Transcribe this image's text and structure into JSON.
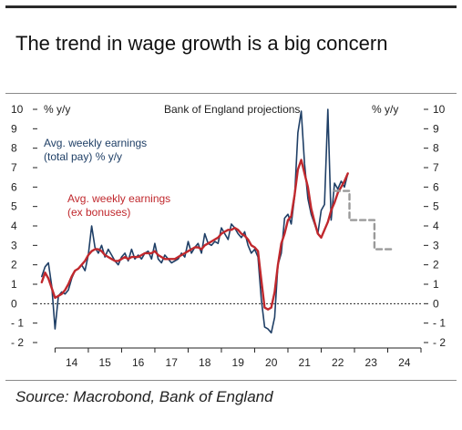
{
  "header": {
    "title": "The trend in wage growth is a big concern"
  },
  "footer": {
    "source": "Source: Macrobond, Bank of England"
  },
  "colors": {
    "total_pay": "#1f3f66",
    "ex_bonuses": "#c0282d",
    "projection": "#9a9a9a",
    "zero_line": "#222222"
  },
  "chart_data": {
    "type": "line",
    "title": "The trend in wage growth is a big concern",
    "ylabel_left": "% y/y",
    "ylabel_right": "% y/y",
    "ylim": [
      -2,
      10
    ],
    "yticks": [
      10,
      9,
      8,
      7,
      6,
      5,
      4,
      3,
      2,
      1,
      0,
      -1,
      -2
    ],
    "ytick_labels": [
      "10",
      "9",
      "8",
      "7",
      "6",
      "5",
      "4",
      "3",
      "2",
      "1",
      "0",
      "- 1",
      "- 2"
    ],
    "xlim": [
      2013.55,
      2025.0
    ],
    "x_tick_labels": [
      "14",
      "15",
      "16",
      "17",
      "18",
      "19",
      "20",
      "21",
      "22",
      "23",
      "24"
    ],
    "x_tick_positions": [
      2014.5,
      2015.5,
      2016.5,
      2017.5,
      2018.5,
      2019.5,
      2020.5,
      2021.5,
      2022.5,
      2023.5,
      2024.5
    ],
    "x_boundaries": [
      2014,
      2015,
      2016,
      2017,
      2018,
      2019,
      2020,
      2021,
      2022,
      2023,
      2024,
      2025
    ],
    "zero_line": true,
    "annotations": {
      "projection_label": "Bank of England projections",
      "total_pay_label_1": "Avg. weekly earnings",
      "total_pay_label_2": "(total pay) % y/y",
      "ex_bonus_label_1": "Avg. weekly earnings",
      "ex_bonus_label_2": "(ex bonuses)"
    },
    "series": [
      {
        "name": "Avg. weekly earnings (total pay) % y/y",
        "style": "solid",
        "points": [
          [
            2013.6,
            1.4
          ],
          [
            2013.7,
            1.9
          ],
          [
            2013.8,
            2.1
          ],
          [
            2013.9,
            0.9
          ],
          [
            2014.0,
            -1.3
          ],
          [
            2014.1,
            0.4
          ],
          [
            2014.2,
            0.6
          ],
          [
            2014.3,
            0.5
          ],
          [
            2014.4,
            0.7
          ],
          [
            2014.5,
            1.3
          ],
          [
            2014.6,
            1.7
          ],
          [
            2014.7,
            1.8
          ],
          [
            2014.8,
            2.0
          ],
          [
            2014.9,
            1.7
          ],
          [
            2015.0,
            2.5
          ],
          [
            2015.1,
            4.0
          ],
          [
            2015.2,
            2.9
          ],
          [
            2015.3,
            2.6
          ],
          [
            2015.4,
            3.0
          ],
          [
            2015.5,
            2.4
          ],
          [
            2015.6,
            2.8
          ],
          [
            2015.7,
            2.5
          ],
          [
            2015.8,
            2.2
          ],
          [
            2015.9,
            2.0
          ],
          [
            2016.0,
            2.4
          ],
          [
            2016.1,
            2.6
          ],
          [
            2016.2,
            2.2
          ],
          [
            2016.3,
            2.8
          ],
          [
            2016.4,
            2.3
          ],
          [
            2016.5,
            2.5
          ],
          [
            2016.6,
            2.3
          ],
          [
            2016.7,
            2.6
          ],
          [
            2016.8,
            2.7
          ],
          [
            2016.9,
            2.3
          ],
          [
            2017.0,
            3.1
          ],
          [
            2017.1,
            2.3
          ],
          [
            2017.2,
            2.1
          ],
          [
            2017.3,
            2.5
          ],
          [
            2017.4,
            2.3
          ],
          [
            2017.5,
            2.1
          ],
          [
            2017.6,
            2.2
          ],
          [
            2017.7,
            2.3
          ],
          [
            2017.8,
            2.6
          ],
          [
            2017.9,
            2.4
          ],
          [
            2018.0,
            3.2
          ],
          [
            2018.1,
            2.6
          ],
          [
            2018.2,
            2.9
          ],
          [
            2018.3,
            3.1
          ],
          [
            2018.4,
            2.6
          ],
          [
            2018.5,
            3.6
          ],
          [
            2018.6,
            3.1
          ],
          [
            2018.7,
            3.0
          ],
          [
            2018.8,
            3.2
          ],
          [
            2018.9,
            3.1
          ],
          [
            2019.0,
            3.9
          ],
          [
            2019.1,
            3.6
          ],
          [
            2019.2,
            3.3
          ],
          [
            2019.3,
            4.1
          ],
          [
            2019.4,
            3.9
          ],
          [
            2019.5,
            3.6
          ],
          [
            2019.6,
            3.4
          ],
          [
            2019.7,
            3.7
          ],
          [
            2019.8,
            3.0
          ],
          [
            2019.9,
            2.6
          ],
          [
            2020.0,
            2.8
          ],
          [
            2020.1,
            2.4
          ],
          [
            2020.2,
            0.2
          ],
          [
            2020.3,
            -1.2
          ],
          [
            2020.4,
            -1.3
          ],
          [
            2020.5,
            -1.5
          ],
          [
            2020.6,
            -0.7
          ],
          [
            2020.7,
            2.0
          ],
          [
            2020.8,
            2.6
          ],
          [
            2020.9,
            4.4
          ],
          [
            2021.0,
            4.6
          ],
          [
            2021.1,
            4.1
          ],
          [
            2021.2,
            5.5
          ],
          [
            2021.3,
            8.8
          ],
          [
            2021.4,
            9.9
          ],
          [
            2021.5,
            7.2
          ],
          [
            2021.6,
            5.4
          ],
          [
            2021.7,
            4.6
          ],
          [
            2021.8,
            4.1
          ],
          [
            2021.9,
            3.6
          ],
          [
            2022.0,
            4.8
          ],
          [
            2022.1,
            5.1
          ],
          [
            2022.2,
            10.0
          ],
          [
            2022.3,
            4.3
          ],
          [
            2022.4,
            6.2
          ],
          [
            2022.5,
            5.9
          ],
          [
            2022.6,
            6.3
          ],
          [
            2022.7,
            6.0
          ],
          [
            2022.8,
            6.7
          ]
        ]
      },
      {
        "name": "Avg. weekly earnings (ex bonuses)",
        "style": "solid",
        "points": [
          [
            2013.6,
            1.1
          ],
          [
            2013.7,
            1.6
          ],
          [
            2013.8,
            1.3
          ],
          [
            2013.9,
            0.8
          ],
          [
            2014.0,
            0.3
          ],
          [
            2014.1,
            0.4
          ],
          [
            2014.2,
            0.5
          ],
          [
            2014.3,
            0.7
          ],
          [
            2014.4,
            1.0
          ],
          [
            2014.5,
            1.4
          ],
          [
            2014.6,
            1.7
          ],
          [
            2014.7,
            1.8
          ],
          [
            2014.8,
            2.0
          ],
          [
            2014.9,
            2.2
          ],
          [
            2015.0,
            2.5
          ],
          [
            2015.1,
            2.7
          ],
          [
            2015.2,
            2.8
          ],
          [
            2015.3,
            2.8
          ],
          [
            2015.4,
            2.7
          ],
          [
            2015.5,
            2.5
          ],
          [
            2015.6,
            2.4
          ],
          [
            2015.7,
            2.3
          ],
          [
            2015.8,
            2.2
          ],
          [
            2015.9,
            2.2
          ],
          [
            2016.0,
            2.3
          ],
          [
            2016.1,
            2.4
          ],
          [
            2016.2,
            2.3
          ],
          [
            2016.3,
            2.4
          ],
          [
            2016.4,
            2.4
          ],
          [
            2016.5,
            2.4
          ],
          [
            2016.6,
            2.5
          ],
          [
            2016.7,
            2.6
          ],
          [
            2016.8,
            2.6
          ],
          [
            2016.9,
            2.6
          ],
          [
            2017.0,
            2.7
          ],
          [
            2017.1,
            2.5
          ],
          [
            2017.2,
            2.4
          ],
          [
            2017.3,
            2.3
          ],
          [
            2017.4,
            2.3
          ],
          [
            2017.5,
            2.3
          ],
          [
            2017.6,
            2.3
          ],
          [
            2017.7,
            2.4
          ],
          [
            2017.8,
            2.5
          ],
          [
            2017.9,
            2.6
          ],
          [
            2018.0,
            2.7
          ],
          [
            2018.1,
            2.8
          ],
          [
            2018.2,
            2.9
          ],
          [
            2018.3,
            2.9
          ],
          [
            2018.4,
            2.8
          ],
          [
            2018.5,
            3.0
          ],
          [
            2018.6,
            3.1
          ],
          [
            2018.7,
            3.2
          ],
          [
            2018.8,
            3.3
          ],
          [
            2018.9,
            3.4
          ],
          [
            2019.0,
            3.6
          ],
          [
            2019.1,
            3.7
          ],
          [
            2019.2,
            3.8
          ],
          [
            2019.3,
            3.8
          ],
          [
            2019.4,
            3.9
          ],
          [
            2019.5,
            3.8
          ],
          [
            2019.6,
            3.6
          ],
          [
            2019.7,
            3.5
          ],
          [
            2019.8,
            3.3
          ],
          [
            2019.9,
            3.0
          ],
          [
            2020.0,
            2.9
          ],
          [
            2020.1,
            2.7
          ],
          [
            2020.2,
            1.2
          ],
          [
            2020.3,
            -0.2
          ],
          [
            2020.4,
            -0.3
          ],
          [
            2020.5,
            -0.2
          ],
          [
            2020.6,
            0.6
          ],
          [
            2020.7,
            2.0
          ],
          [
            2020.8,
            3.1
          ],
          [
            2020.9,
            3.6
          ],
          [
            2021.0,
            4.3
          ],
          [
            2021.1,
            4.5
          ],
          [
            2021.2,
            5.6
          ],
          [
            2021.3,
            6.9
          ],
          [
            2021.4,
            7.4
          ],
          [
            2021.5,
            6.7
          ],
          [
            2021.6,
            6.0
          ],
          [
            2021.7,
            4.9
          ],
          [
            2021.8,
            4.2
          ],
          [
            2021.9,
            3.6
          ],
          [
            2022.0,
            3.4
          ],
          [
            2022.1,
            3.8
          ],
          [
            2022.2,
            4.2
          ],
          [
            2022.3,
            4.8
          ],
          [
            2022.4,
            5.2
          ],
          [
            2022.5,
            5.7
          ],
          [
            2022.6,
            6.0
          ],
          [
            2022.7,
            6.3
          ],
          [
            2022.8,
            6.7
          ]
        ]
      },
      {
        "name": "Bank of England projections",
        "style": "dashed",
        "points": [
          [
            2022.4,
            5.8
          ],
          [
            2022.85,
            5.8
          ],
          [
            2022.85,
            4.3
          ],
          [
            2023.6,
            4.3
          ],
          [
            2023.6,
            2.8
          ],
          [
            2024.2,
            2.8
          ]
        ]
      }
    ]
  }
}
